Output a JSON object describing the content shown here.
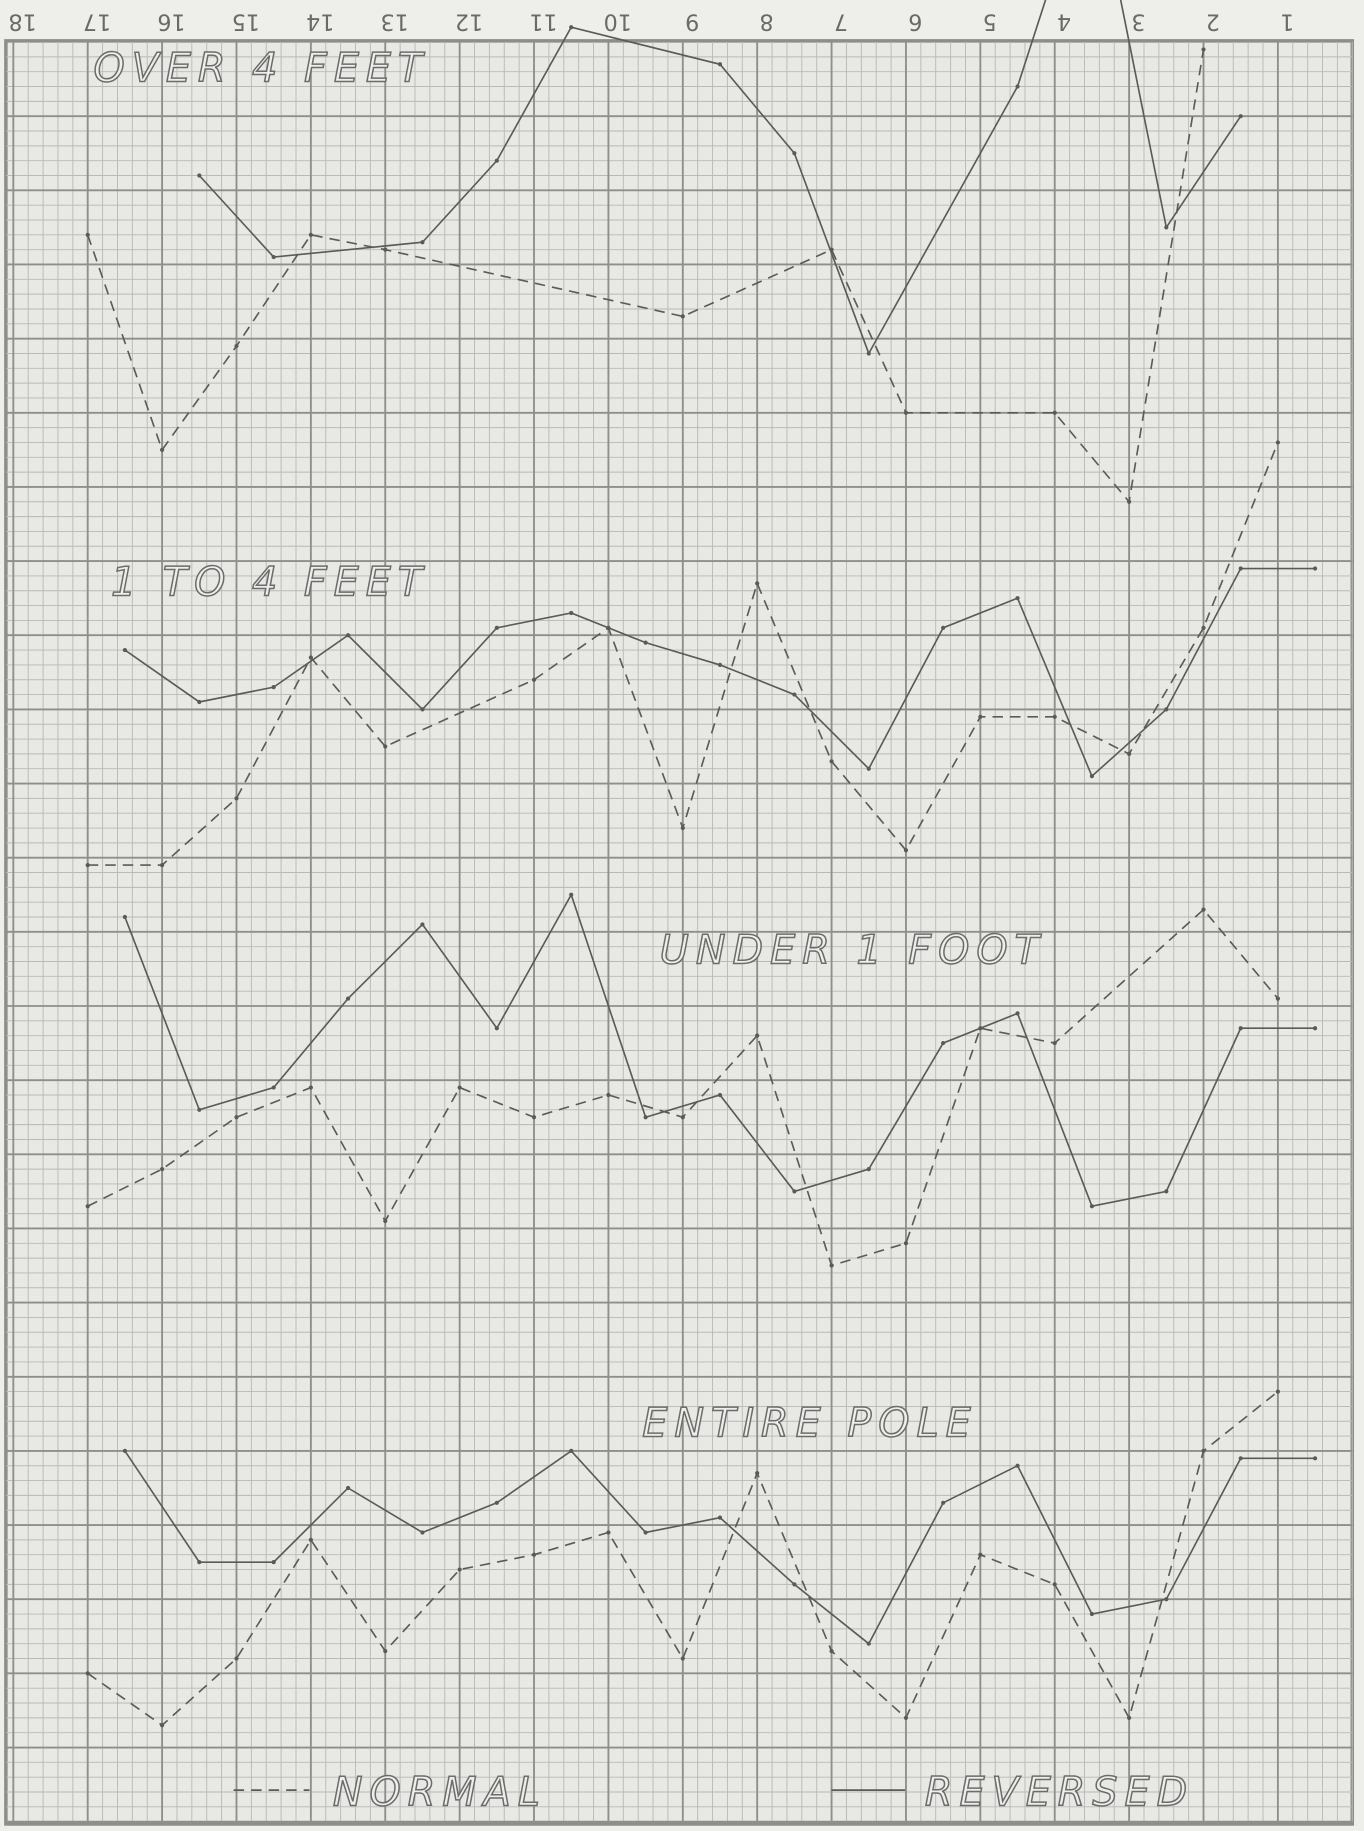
{
  "chart_data": {
    "type": "line",
    "xlim": [
      18.1,
      0
    ],
    "xticks": [
      18,
      17,
      16,
      15,
      14,
      13,
      12,
      11,
      10,
      9,
      8,
      7,
      6,
      5,
      4,
      3,
      2,
      1
    ],
    "ylim": [
      0,
      24
    ],
    "grid": true,
    "panels": [
      {
        "title": "OVER 4 FEET",
        "series": [
          {
            "name": "NORMAL",
            "style": "dashed",
            "color": "#5a5a58",
            "x": [
              17,
              16,
              15,
              14,
              13,
              9,
              7,
              6,
              4,
              3,
              2
            ],
            "values": [
              21.4,
              18.5,
              19.9,
              21.4,
              21.2,
              20.3,
              21.2,
              19.0,
              19.0,
              17.8,
              23.9
            ]
          },
          {
            "name": "REVERSED",
            "style": "solid",
            "color": "#5a5a58",
            "x": [
              15.5,
              14.5,
              12.5,
              11.5,
              10.5,
              8.5,
              7.5,
              6.5,
              4.5,
              3.5,
              2.5,
              1.5
            ],
            "values": [
              22.2,
              21.1,
              21.3,
              22.4,
              24.2,
              23.7,
              22.5,
              19.8,
              23.4,
              26.5,
              21.5,
              23.0
            ]
          }
        ]
      },
      {
        "title": "1 TO 4 FEET",
        "series": [
          {
            "name": "NORMAL",
            "style": "dashed",
            "color": "#5a5a58",
            "x": [
              17,
              16,
              15,
              14,
              13,
              11,
              10,
              9,
              8,
              7,
              6,
              5,
              4,
              3,
              2,
              1
            ],
            "values": [
              12.9,
              12.9,
              13.8,
              15.7,
              14.5,
              15.4,
              16.1,
              13.4,
              16.7,
              14.3,
              13.1,
              14.9,
              14.9,
              14.4,
              16.1,
              18.6
            ]
          },
          {
            "name": "REVERSED",
            "style": "solid",
            "color": "#5a5a58",
            "x": [
              16.5,
              15.5,
              14.5,
              13.5,
              12.5,
              11.5,
              10.5,
              9.5,
              8.5,
              7.5,
              6.5,
              5.5,
              4.5,
              3.5,
              2.5,
              1.5,
              0.5
            ],
            "values": [
              15.8,
              15.1,
              15.3,
              16.0,
              15.0,
              16.1,
              16.3,
              15.9,
              15.6,
              15.2,
              14.2,
              16.1,
              16.5,
              14.1,
              15.0,
              16.9,
              16.9
            ]
          }
        ]
      },
      {
        "title": "UNDER 1 FOOT",
        "series": [
          {
            "name": "NORMAL",
            "style": "dashed",
            "color": "#5a5a58",
            "x": [
              17,
              16,
              15,
              14,
              13,
              12,
              11,
              10,
              9,
              8,
              7,
              6,
              5,
              4,
              2,
              1
            ],
            "values": [
              8.3,
              8.8,
              9.5,
              9.9,
              8.1,
              9.9,
              9.5,
              9.8,
              9.5,
              10.6,
              7.5,
              7.8,
              10.7,
              10.5,
              12.3,
              11.1
            ]
          },
          {
            "name": "REVERSED",
            "style": "solid",
            "color": "#5a5a58",
            "x": [
              16.5,
              15.5,
              14.5,
              13.5,
              12.5,
              11.5,
              10.5,
              9.5,
              8.5,
              7.5,
              6.5,
              5.5,
              4.5,
              3.5,
              2.5,
              1.5,
              0.5
            ],
            "values": [
              12.2,
              9.6,
              9.9,
              11.1,
              12.1,
              10.7,
              12.5,
              9.5,
              9.8,
              8.5,
              8.8,
              10.5,
              10.9,
              8.3,
              8.5,
              10.7,
              10.7
            ]
          }
        ]
      },
      {
        "title": "ENTIRE POLE",
        "series": [
          {
            "name": "NORMAL",
            "style": "dashed",
            "color": "#5a5a58",
            "x": [
              17,
              16,
              15,
              14,
              13,
              12,
              11,
              10,
              9,
              8,
              7,
              6,
              5,
              4,
              3,
              2,
              1
            ],
            "values": [
              2.0,
              1.3,
              2.2,
              3.8,
              2.3,
              3.4,
              3.6,
              3.9,
              2.2,
              4.7,
              2.3,
              1.4,
              3.6,
              3.2,
              1.4,
              5.0,
              5.8
            ]
          },
          {
            "name": "REVERSED",
            "style": "solid",
            "color": "#5a5a58",
            "x": [
              16.5,
              15.5,
              14.5,
              13.5,
              12.5,
              11.5,
              10.5,
              9.5,
              8.5,
              7.5,
              6.5,
              5.5,
              4.5,
              3.5,
              2.5,
              1.5,
              0.5
            ],
            "values": [
              5.0,
              3.5,
              3.5,
              4.5,
              3.9,
              4.3,
              5.0,
              3.9,
              4.1,
              3.2,
              2.4,
              4.3,
              4.8,
              2.8,
              3.0,
              4.9,
              4.9
            ]
          }
        ]
      }
    ]
  }
}
